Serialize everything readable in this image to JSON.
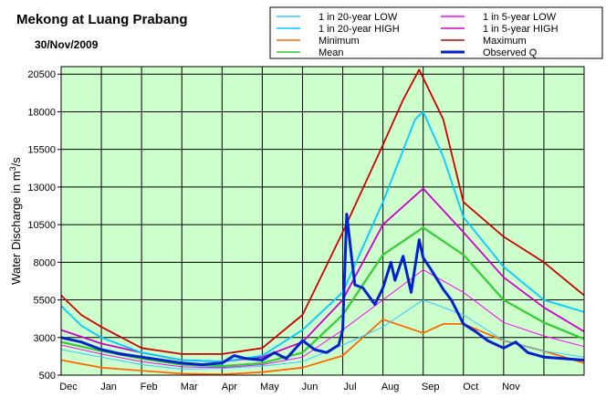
{
  "colors": {
    "plot_bg": "#ccffcc",
    "rp20_low": "#33ccff",
    "rp20_high": "#00ccff",
    "minimum": "#ff6600",
    "mean": "#33cc33",
    "rp5_low": "#ff00ff",
    "rp5_high": "#cc00cc",
    "maximum": "#cc0000",
    "observed": "#0022cc"
  },
  "chart_data": {
    "type": "line",
    "title": "Mekong at Luang Prabang",
    "subtitle": "30/Nov/2009",
    "ylabel_main": "Water Discharge in m",
    "ylabel_sup": "3",
    "ylabel_tail": "/s",
    "ylim": [
      500,
      21000
    ],
    "xlim": [
      0,
      13
    ],
    "x_unit_note": "x values are months since 1 Dec (Dec=0 ... Nov=11), 13 months shown",
    "grid": true,
    "legend_position": "top",
    "y_ticks": [
      500,
      3000,
      5500,
      8000,
      10500,
      13000,
      15500,
      18000,
      20500
    ],
    "y_tick_labels": [
      "500",
      "3000",
      "5500",
      "8000",
      "10500",
      "13000",
      "15500",
      "18000",
      "20500"
    ],
    "x_tick_labels": [
      "Dec",
      "Jan",
      "Feb",
      "Mar",
      "Apr",
      "May",
      "Jun",
      "Jul",
      "Aug",
      "Sep",
      "Oct",
      "Nov"
    ],
    "series": [
      {
        "key": "rp20_low",
        "name": "1 in 20-year LOW",
        "values": [
          [
            0,
            2200
          ],
          [
            1,
            1700
          ],
          [
            2,
            1200
          ],
          [
            3,
            900
          ],
          [
            4,
            950
          ],
          [
            5,
            1100
          ],
          [
            6,
            1400
          ],
          [
            7,
            2500
          ],
          [
            8,
            3700
          ],
          [
            9,
            5500
          ],
          [
            10,
            4500
          ],
          [
            11,
            2800
          ],
          [
            12,
            2100
          ],
          [
            13,
            1700
          ]
        ]
      },
      {
        "key": "rp20_high",
        "name": "1 in 20-year HIGH",
        "values": [
          [
            0,
            5100
          ],
          [
            0.5,
            3800
          ],
          [
            1,
            3000
          ],
          [
            2,
            2000
          ],
          [
            3,
            1500
          ],
          [
            4,
            1400
          ],
          [
            5,
            1800
          ],
          [
            6,
            3500
          ],
          [
            7,
            6000
          ],
          [
            8,
            12000
          ],
          [
            8.8,
            17500
          ],
          [
            9,
            18000
          ],
          [
            9.5,
            15000
          ],
          [
            10,
            11000
          ],
          [
            11,
            7700
          ],
          [
            12,
            5500
          ],
          [
            13,
            4700
          ]
        ]
      },
      {
        "key": "minimum",
        "name": "Minimum",
        "values": [
          [
            0,
            1500
          ],
          [
            1,
            1000
          ],
          [
            2,
            800
          ],
          [
            3,
            600
          ],
          [
            4,
            550
          ],
          [
            5,
            700
          ],
          [
            6,
            1000
          ],
          [
            7,
            1800
          ],
          [
            8,
            4200
          ],
          [
            9,
            3300
          ],
          [
            9.5,
            3900
          ],
          [
            10,
            3900
          ],
          [
            11,
            2800
          ],
          [
            12,
            2100
          ],
          [
            13,
            1300
          ]
        ]
      },
      {
        "key": "mean",
        "name": "Mean",
        "values": [
          [
            0,
            2700
          ],
          [
            1,
            2100
          ],
          [
            2,
            1600
          ],
          [
            3,
            1200
          ],
          [
            4,
            1100
          ],
          [
            5,
            1300
          ],
          [
            6,
            2000
          ],
          [
            7,
            4500
          ],
          [
            8,
            8500
          ],
          [
            9,
            10300
          ],
          [
            10,
            8500
          ],
          [
            11,
            5500
          ],
          [
            12,
            4000
          ],
          [
            13,
            2900
          ]
        ]
      },
      {
        "key": "rp5_low",
        "name": "1 in 5-year LOW",
        "values": [
          [
            0,
            2500
          ],
          [
            1,
            1900
          ],
          [
            2,
            1400
          ],
          [
            3,
            1050
          ],
          [
            4,
            1000
          ],
          [
            5,
            1200
          ],
          [
            6,
            1700
          ],
          [
            7,
            3500
          ],
          [
            8,
            5500
          ],
          [
            9,
            7500
          ],
          [
            10,
            6000
          ],
          [
            11,
            4000
          ],
          [
            12,
            3100
          ],
          [
            13,
            2400
          ]
        ]
      },
      {
        "key": "rp5_high",
        "name": "1 in 5-year HIGH",
        "values": [
          [
            0,
            3500
          ],
          [
            1,
            2600
          ],
          [
            2,
            2000
          ],
          [
            3,
            1500
          ],
          [
            4,
            1400
          ],
          [
            5,
            1700
          ],
          [
            6,
            2700
          ],
          [
            7,
            5500
          ],
          [
            8,
            10500
          ],
          [
            9,
            12900
          ],
          [
            10,
            10000
          ],
          [
            11,
            7000
          ],
          [
            12,
            5000
          ],
          [
            13,
            3400
          ]
        ]
      },
      {
        "key": "maximum",
        "name": "Maximum",
        "values": [
          [
            0,
            5800
          ],
          [
            0.5,
            4500
          ],
          [
            1,
            3700
          ],
          [
            2,
            2300
          ],
          [
            3,
            1900
          ],
          [
            4,
            1900
          ],
          [
            5,
            2300
          ],
          [
            6,
            4500
          ],
          [
            7,
            10000
          ],
          [
            8,
            15800
          ],
          [
            8.5,
            18800
          ],
          [
            8.9,
            20800
          ],
          [
            9.5,
            17500
          ],
          [
            10,
            12000
          ],
          [
            11,
            9700
          ],
          [
            12,
            8000
          ],
          [
            13,
            5800
          ]
        ]
      },
      {
        "key": "observed",
        "name": "Observed Q",
        "values": [
          [
            0,
            3000
          ],
          [
            0.5,
            2700
          ],
          [
            1,
            2200
          ],
          [
            1.5,
            1900
          ],
          [
            2,
            1700
          ],
          [
            2.5,
            1500
          ],
          [
            3,
            1300
          ],
          [
            3.5,
            1200
          ],
          [
            4,
            1300
          ],
          [
            4.3,
            1800
          ],
          [
            4.6,
            1600
          ],
          [
            5,
            1500
          ],
          [
            5.3,
            2000
          ],
          [
            5.6,
            1600
          ],
          [
            6,
            2800
          ],
          [
            6.3,
            2200
          ],
          [
            6.6,
            2000
          ],
          [
            6.9,
            2500
          ],
          [
            7,
            3500
          ],
          [
            7.1,
            11200
          ],
          [
            7.2,
            8800
          ],
          [
            7.3,
            6500
          ],
          [
            7.5,
            6300
          ],
          [
            7.8,
            5200
          ],
          [
            8,
            6300
          ],
          [
            8.2,
            8000
          ],
          [
            8.3,
            6800
          ],
          [
            8.5,
            8400
          ],
          [
            8.7,
            6000
          ],
          [
            8.9,
            9500
          ],
          [
            9,
            8300
          ],
          [
            9.2,
            7500
          ],
          [
            9.5,
            6200
          ],
          [
            9.7,
            5500
          ],
          [
            10,
            3900
          ],
          [
            10.3,
            3400
          ],
          [
            10.6,
            2800
          ],
          [
            11,
            2300
          ],
          [
            11.3,
            2700
          ],
          [
            11.6,
            2000
          ],
          [
            12,
            1700
          ],
          [
            12.5,
            1600
          ],
          [
            13,
            1500
          ]
        ]
      }
    ]
  }
}
